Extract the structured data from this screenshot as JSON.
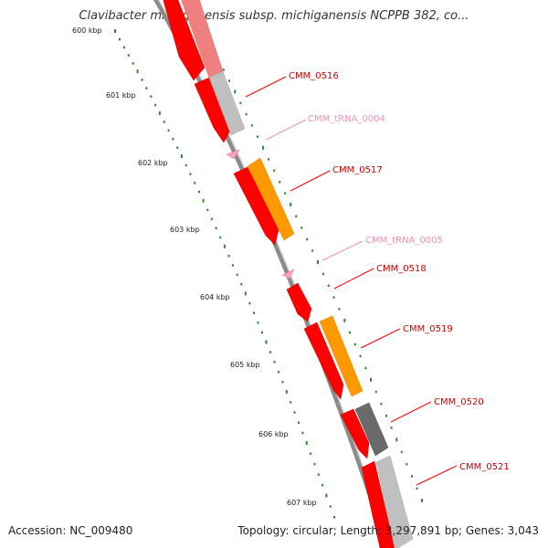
{
  "title": "Clavibacter michiganensis subsp. michiganensis NCPPB 382, co...",
  "accession_text": "Accession: NC_009480",
  "summary_text": "Topology: circular; Length: 3,297,891 bp; Genes: 3,043",
  "kbp_ticks": [
    "600 kbp",
    "601 kbp",
    "602 kbp",
    "603 kbp",
    "604 kbp",
    "605 kbp",
    "606 kbp",
    "607 kbp"
  ],
  "colors": {
    "cds_red": "#ff0000",
    "cds_pale": "#f08080",
    "grey_feature": "#c0c0c0",
    "dark_grey_feature": "#6a6a6a",
    "orange_feature": "#ff9900",
    "trna_pink": "#ffa0c0",
    "backbone": "#8c8c8c",
    "tick_green": "#2d8a2d",
    "label_red": "#cc0000",
    "label_pink": "#f090b0"
  },
  "features": [
    {
      "label": "CMM_0516",
      "kind": "cds"
    },
    {
      "label": "CMM_tRNA_0004",
      "kind": "trna"
    },
    {
      "label": "CMM_0517",
      "kind": "cds"
    },
    {
      "label": "CMM_tRNA_0005",
      "kind": "trna"
    },
    {
      "label": "CMM_0518",
      "kind": "cds"
    },
    {
      "label": "CMM_0519",
      "kind": "cds"
    },
    {
      "label": "CMM_0520",
      "kind": "cds"
    },
    {
      "label": "CMM_0521",
      "kind": "cds"
    }
  ]
}
